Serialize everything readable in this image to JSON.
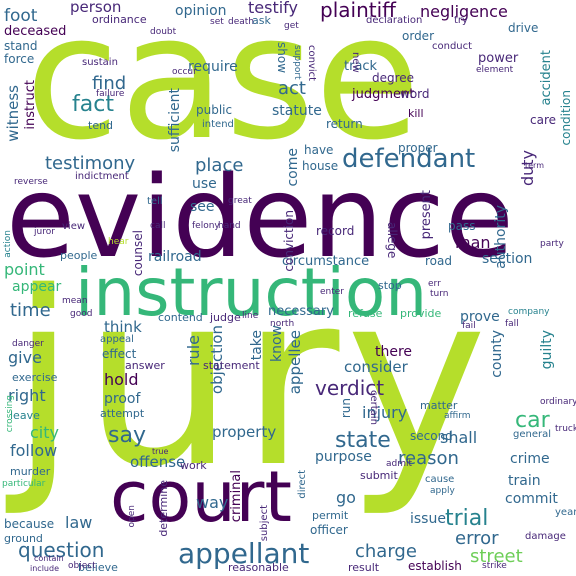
{
  "palette": {
    "dark_purple": "#440154",
    "indigo": "#482878",
    "blue": "#31688e",
    "teal": "#26828e",
    "green": "#35b779",
    "light_green": "#6ece58",
    "lime": "#b5de2b",
    "yellow": "#fde725"
  },
  "words": [
    "jury",
    "case",
    "evidence",
    "instruction",
    "court",
    "appellant",
    "defendant",
    "testimony",
    "question",
    "verdict",
    "state",
    "trial",
    "error",
    "charge",
    "street",
    "fact",
    "say",
    "plaintiff",
    "negligence",
    "person",
    "opinion",
    "testify",
    "foot",
    "ordinance",
    "deceased",
    "stand",
    "force",
    "sustain",
    "require",
    "find",
    "witness",
    "instruct",
    "act",
    "statute",
    "judgment",
    "track",
    "show",
    "convict",
    "support",
    "degree",
    "order",
    "drive",
    "accident",
    "care",
    "power",
    "element",
    "word",
    "kill",
    "return",
    "public",
    "intend",
    "submit",
    "place",
    "duty",
    "use",
    "see",
    "great",
    "tell",
    "man",
    "record",
    "railroad",
    "road",
    "section",
    "circumstance",
    "point",
    "appear",
    "time",
    "people",
    "counsel",
    "view",
    "necessary",
    "refuse",
    "provide",
    "stop",
    "give",
    "think",
    "hold",
    "proof",
    "right",
    "city",
    "follow",
    "law",
    "because",
    "ground",
    "include",
    "believe",
    "determine",
    "criminal",
    "subject",
    "direct",
    "permit",
    "officer",
    "issue",
    "reasonable",
    "result",
    "establish",
    "strike",
    "company",
    "car",
    "county",
    "guilty",
    "prove",
    "crime",
    "train",
    "commit",
    "general",
    "damage",
    "year",
    "reason",
    "shall",
    "injury",
    "consider",
    "there",
    "property",
    "purpose",
    "offense",
    "work",
    "way",
    "go",
    "rule",
    "objection",
    "appellee",
    "take",
    "know",
    "contend",
    "judge",
    "statement",
    "answer",
    "effect",
    "appeal",
    "exercise",
    "murder",
    "leave",
    "attempt",
    "matter",
    "second",
    "affirm",
    "run",
    "house",
    "come",
    "have",
    "conviction",
    "allege",
    "pass",
    "authority",
    "present",
    "proper",
    "condition",
    "term",
    "certain",
    "ordinary",
    "truck",
    "apply",
    "cause",
    "mean",
    "good",
    "object",
    "danger",
    "crossing",
    "particular",
    "hear",
    "action",
    "juror",
    "reverse",
    "indictment",
    "tend",
    "failure",
    "occur",
    "doubt",
    "set",
    "death",
    "declaration",
    "conduct",
    "try",
    "new",
    "call",
    "line",
    "north",
    "felony",
    "hand",
    "sufficient",
    "fail",
    "fall",
    "enter",
    "turn",
    "err",
    "admit",
    "true",
    "open",
    "contain",
    "get",
    "ask",
    "party"
  ]
}
